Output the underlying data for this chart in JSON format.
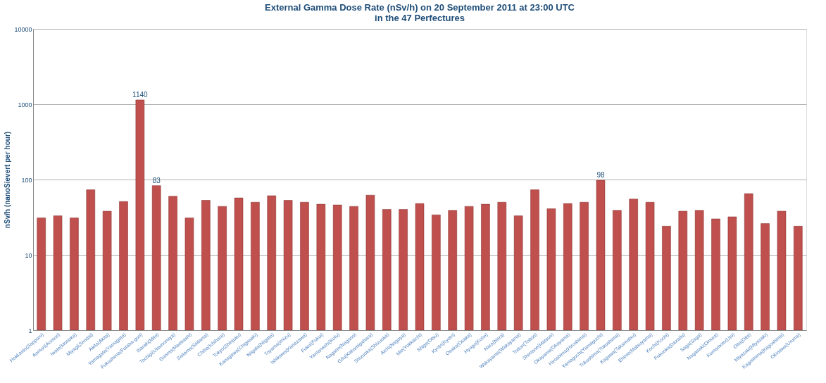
{
  "chart_data": {
    "type": "bar",
    "title": "External Gamma Dose Rate (nSv/h) on  20 September 2011 at  23:00 UTC\nin the 47 Perfectures",
    "ylabel": "nSv/h (nanoSievert per hour)",
    "categories": [
      "Hokkaido(Sapporo)",
      "Aomori(Aomori)",
      "Iwate(Morioka)",
      "Miyagi(Sendai)",
      "Akita(Akita)",
      "Yamagata(Yamagata)",
      "Fukushima(Futaba-gun)",
      "Ibaraki(Mito)",
      "Tochigi(Utsunomiya)",
      "Gunma(Maebashi)",
      "Saitama(Saitama)",
      "Chiba(Ichihara)",
      "Tokyo(Shinjuku)",
      "Kanagawa(Chigasaki)",
      "Niigata(Niigata)",
      "Toyama(Imizu)",
      "Ishikawa(Kanazawa)",
      "Fukui(Fukui)",
      "Yamanashi(Kofu)",
      "Nagano(Nagano)",
      "Gifu(Kakamigahara)",
      "Shizuoka(Shizuoka)",
      "Aichi(Nagoya)",
      "Mie(Yokkaichi)",
      "Shiga(Otsu)",
      "Kyoto(Kyoto)",
      "Osaka(Osaka)",
      "Hyogo(Kobe)",
      "Nara(Nara)",
      "Wakayama(Wakayama)",
      "Tottori(Tottori)",
      "Shimane(Matsue)",
      "Okayama(Okayama)",
      "Hiroshima(Hiroshima)",
      "Yamaguchi(Yamaguchi)",
      "Tokushima(Tokushima)",
      "Kagawa(Takamatsu)",
      "Ehime(Matsuyama)",
      "Kochi(Kochi)",
      "Fukuoka(Dazaifu)",
      "Saga(Saga)",
      "Nagasaki(Omura)",
      "Kumamoto(Uto)",
      "Oita(Oita)",
      "Miyazaki(Miyazaki)",
      "Kagoshima(Kagoshima)",
      "Okinawa(Uruma)"
    ],
    "values": [
      31,
      33,
      31,
      73,
      38,
      51,
      1140,
      83,
      60,
      31,
      53,
      44,
      57,
      50,
      61,
      53,
      50,
      47,
      46,
      44,
      62,
      40,
      40,
      48,
      34,
      39,
      44,
      47,
      50,
      33,
      73,
      41,
      48,
      50,
      98,
      39,
      55,
      50,
      24,
      38,
      39,
      30,
      32,
      65,
      26,
      38,
      24
    ],
    "value_labels": [
      null,
      null,
      null,
      null,
      null,
      null,
      "1140",
      "83",
      null,
      null,
      null,
      null,
      null,
      null,
      null,
      null,
      null,
      null,
      null,
      null,
      null,
      null,
      null,
      null,
      null,
      null,
      null,
      null,
      null,
      null,
      null,
      null,
      null,
      null,
      "98",
      null,
      null,
      null,
      null,
      null,
      null,
      null,
      null,
      null,
      null,
      null,
      null
    ],
    "color": "#c0504d",
    "log": true,
    "ylim": [
      1,
      10000
    ],
    "yticks": [
      1,
      10,
      100,
      1000,
      10000
    ],
    "grid": "y"
  }
}
